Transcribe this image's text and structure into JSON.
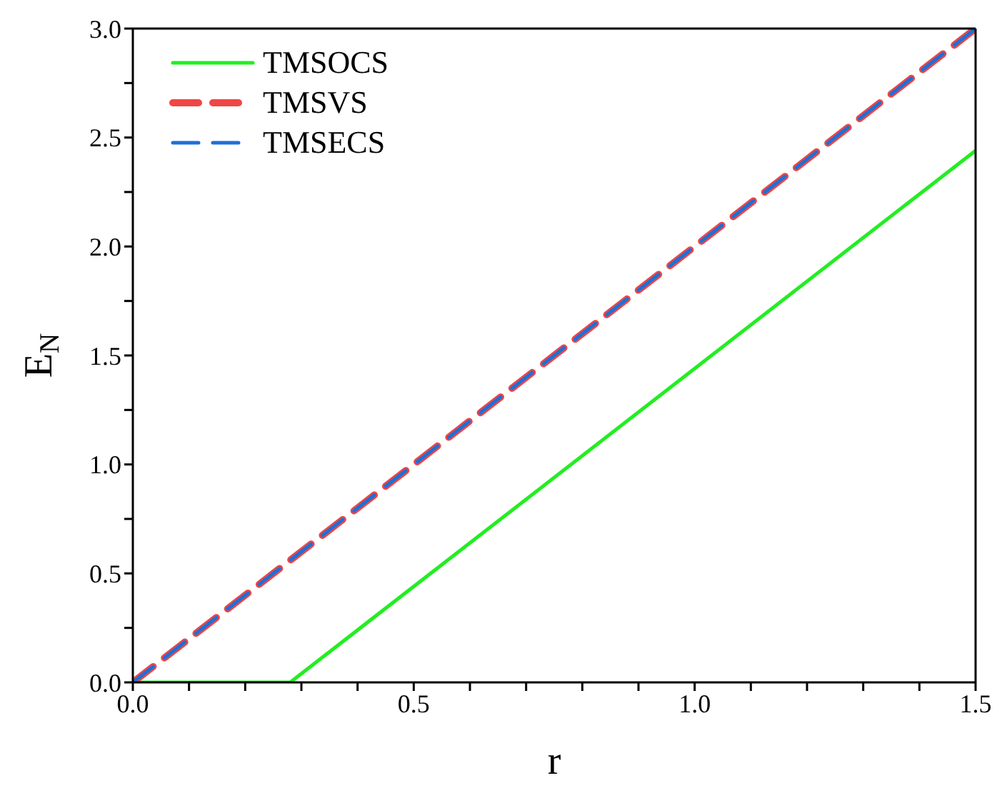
{
  "chart_data": {
    "type": "line",
    "xlabel": "r",
    "ylabel": "E$_{N}$",
    "xlim": [
      0,
      1.5
    ],
    "ylim": [
      0,
      3
    ],
    "xticks": [
      {
        "value": 0,
        "label": "0.0"
      },
      {
        "value": 0.1,
        "label": null
      },
      {
        "value": 0.2,
        "label": null
      },
      {
        "value": 0.3,
        "label": null
      },
      {
        "value": 0.4,
        "label": null
      },
      {
        "value": 0.5,
        "label": "0.5"
      },
      {
        "value": 0.6,
        "label": null
      },
      {
        "value": 0.7,
        "label": null
      },
      {
        "value": 0.8,
        "label": null
      },
      {
        "value": 0.9,
        "label": null
      },
      {
        "value": 1,
        "label": "1.0"
      },
      {
        "value": 1.1,
        "label": null
      },
      {
        "value": 1.2,
        "label": null
      },
      {
        "value": 1.3,
        "label": null
      },
      {
        "value": 1.4,
        "label": null
      },
      {
        "value": 1.5,
        "label": "1.5"
      }
    ],
    "yticks": [
      {
        "value": 0,
        "label": "0.0"
      },
      {
        "value": 0.25,
        "label": null
      },
      {
        "value": 0.5,
        "label": "0.5"
      },
      {
        "value": 0.75,
        "label": null
      },
      {
        "value": 1,
        "label": "1.0"
      },
      {
        "value": 1.25,
        "label": null
      },
      {
        "value": 1.5,
        "label": "1.5"
      },
      {
        "value": 1.75,
        "label": null
      },
      {
        "value": 2,
        "label": "2.0"
      },
      {
        "value": 2.25,
        "label": null
      },
      {
        "value": 2.5,
        "label": "2.5"
      },
      {
        "value": 2.75,
        "label": null
      },
      {
        "value": 3,
        "label": "3.0"
      }
    ],
    "legend": "top left",
    "marker": "none",
    "series": [
      {
        "name": "TMSOCS",
        "color": "#22ee22",
        "line_style": "solid",
        "x": [
          0,
          0.28,
          1.5
        ],
        "values": [
          0,
          0,
          2.44
        ]
      },
      {
        "name": "TMSVS",
        "color": "#f04545",
        "line_style": "dashed",
        "x": [
          0,
          1.5
        ],
        "values": [
          0,
          3
        ]
      },
      {
        "name": "TMSECS",
        "color": "#1f6fd6",
        "line_style": "dashed",
        "x": [
          0,
          1.5
        ],
        "values": [
          0,
          3
        ]
      }
    ]
  }
}
